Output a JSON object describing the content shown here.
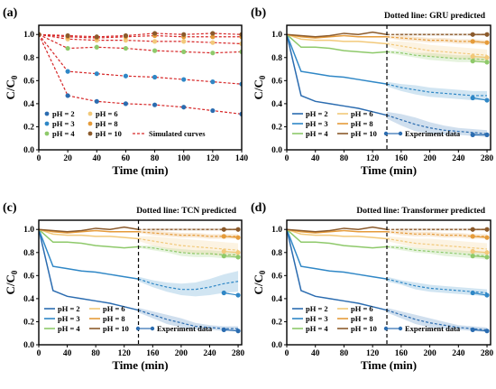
{
  "colors": {
    "pH2": "#2b6cb0",
    "pH3": "#2f87c6",
    "pH4": "#8ec96a",
    "pH6": "#f2c97a",
    "pH8": "#e59b3a",
    "pH10": "#8b5a2b",
    "simulated": "#d62728"
  },
  "chart_data": [
    {
      "type": "scatter",
      "panel_label": "(a)",
      "note": "",
      "xlabel": "Time (min)",
      "ylabel": "C/C0",
      "xlim": [
        0,
        140
      ],
      "ylim": [
        0,
        1.08
      ],
      "xticks": [
        0,
        20,
        40,
        60,
        80,
        100,
        120,
        140
      ],
      "yticks": [
        0,
        0.2,
        0.4,
        0.6,
        0.8,
        1.0
      ],
      "legend": {
        "position": "bottom-left",
        "entries": [
          {
            "key": "pH2",
            "label": "pH = 2"
          },
          {
            "key": "pH3",
            "label": "pH = 3"
          },
          {
            "key": "pH4",
            "label": "pH = 4"
          },
          {
            "key": "pH6",
            "label": "pH = 6"
          },
          {
            "key": "pH8",
            "label": "pH = 8"
          },
          {
            "key": "pH10",
            "label": "pH = 10"
          },
          {
            "key": "simulated",
            "label": "Simulated curves"
          }
        ]
      },
      "x": [
        0,
        20,
        40,
        60,
        80,
        100,
        120,
        140
      ],
      "series": [
        {
          "key": "pH2",
          "values": [
            1.0,
            0.47,
            0.42,
            0.4,
            0.39,
            0.37,
            0.34,
            0.31
          ]
        },
        {
          "key": "pH3",
          "values": [
            1.0,
            0.68,
            0.66,
            0.64,
            0.63,
            0.61,
            0.59,
            0.57
          ]
        },
        {
          "key": "pH4",
          "values": [
            1.0,
            0.88,
            0.89,
            0.88,
            0.86,
            0.85,
            0.84,
            0.85
          ]
        },
        {
          "key": "pH6",
          "values": [
            1.0,
            0.96,
            0.95,
            0.95,
            0.94,
            0.94,
            0.93,
            0.92
          ]
        },
        {
          "key": "pH8",
          "values": [
            1.0,
            0.98,
            0.97,
            0.98,
            0.99,
            0.98,
            0.98,
            0.98
          ]
        },
        {
          "key": "pH10",
          "values": [
            1.0,
            0.99,
            0.98,
            0.99,
            1.01,
            1.0,
            1.01,
            1.0
          ]
        }
      ]
    },
    {
      "type": "line",
      "panel_label": "(b)",
      "note": "Dotted line: GRU predicted",
      "xlabel": "Time (min)",
      "ylabel": "C/C0",
      "xlim": [
        0,
        285
      ],
      "ylim": [
        0,
        1.08
      ],
      "xticks": [
        0,
        40,
        80,
        120,
        160,
        200,
        240,
        280
      ],
      "yticks": [
        0,
        0.2,
        0.4,
        0.6,
        0.8,
        1.0
      ],
      "split_x": 140,
      "legend": {
        "position": "bottom-left",
        "entries": [
          {
            "key": "pH2",
            "label": "pH = 2"
          },
          {
            "key": "pH3",
            "label": "pH = 3"
          },
          {
            "key": "pH4",
            "label": "pH = 4"
          },
          {
            "key": "pH6",
            "label": "pH = 6"
          },
          {
            "key": "pH8",
            "label": "pH = 8"
          },
          {
            "key": "pH10",
            "label": "pH = 10"
          },
          {
            "key": "experiment",
            "label": "Experiment data"
          }
        ]
      },
      "x_train": [
        0,
        20,
        40,
        60,
        80,
        100,
        120,
        140
      ],
      "x_pred": [
        140,
        160,
        180,
        200,
        220,
        240,
        260,
        280
      ],
      "x_exp": [
        260,
        280
      ],
      "series": [
        {
          "key": "pH2",
          "train": [
            1.0,
            0.47,
            0.42,
            0.4,
            0.38,
            0.36,
            0.33,
            0.3
          ],
          "pred": [
            0.3,
            0.26,
            0.22,
            0.19,
            0.17,
            0.16,
            0.15,
            0.14
          ],
          "band": [
            0.03,
            0.05,
            0.06,
            0.05,
            0.04,
            0.03,
            0.03,
            0.03
          ],
          "exp": [
            0.13,
            0.13
          ]
        },
        {
          "key": "pH3",
          "train": [
            1.0,
            0.68,
            0.66,
            0.64,
            0.63,
            0.61,
            0.59,
            0.57
          ],
          "pred": [
            0.57,
            0.54,
            0.52,
            0.5,
            0.49,
            0.48,
            0.47,
            0.47
          ],
          "band": [
            0.02,
            0.03,
            0.04,
            0.04,
            0.04,
            0.04,
            0.04,
            0.04
          ],
          "exp": [
            0.45,
            0.43
          ]
        },
        {
          "key": "pH4",
          "train": [
            1.0,
            0.89,
            0.89,
            0.88,
            0.86,
            0.85,
            0.84,
            0.85
          ],
          "pred": [
            0.85,
            0.84,
            0.82,
            0.81,
            0.8,
            0.79,
            0.79,
            0.78
          ],
          "band": [
            0.01,
            0.02,
            0.02,
            0.03,
            0.03,
            0.03,
            0.03,
            0.03
          ],
          "exp": [
            0.77,
            0.76
          ]
        },
        {
          "key": "pH6",
          "train": [
            1.0,
            0.96,
            0.95,
            0.95,
            0.94,
            0.94,
            0.93,
            0.92
          ],
          "pred": [
            0.92,
            0.9,
            0.88,
            0.86,
            0.85,
            0.84,
            0.83,
            0.82
          ],
          "band": [
            0.02,
            0.04,
            0.05,
            0.05,
            0.05,
            0.05,
            0.05,
            0.05
          ],
          "exp": [
            0.81,
            0.8
          ]
        },
        {
          "key": "pH8",
          "train": [
            1.0,
            0.98,
            0.97,
            0.98,
            0.99,
            0.98,
            0.98,
            0.98
          ],
          "pred": [
            0.98,
            0.97,
            0.96,
            0.95,
            0.95,
            0.94,
            0.94,
            0.93
          ],
          "band": [
            0.01,
            0.02,
            0.02,
            0.02,
            0.02,
            0.02,
            0.02,
            0.02
          ],
          "exp": [
            0.94,
            0.93
          ]
        },
        {
          "key": "pH10",
          "train": [
            1.0,
            0.99,
            0.98,
            0.99,
            1.01,
            1.0,
            1.02,
            1.0
          ],
          "pred": [
            1.0,
            1.0,
            1.0,
            1.0,
            1.0,
            1.0,
            1.0,
            1.0
          ],
          "band": [
            0.0,
            0.01,
            0.01,
            0.01,
            0.01,
            0.01,
            0.01,
            0.01
          ],
          "exp": [
            1.0,
            1.0
          ]
        }
      ]
    },
    {
      "type": "line",
      "panel_label": "(c)",
      "note": "Dotted line: TCN predicted",
      "xlabel": "Time (min)",
      "ylabel": "C/C0",
      "xlim": [
        0,
        285
      ],
      "ylim": [
        0,
        1.08
      ],
      "xticks": [
        0,
        40,
        80,
        120,
        160,
        200,
        240,
        280
      ],
      "yticks": [
        0,
        0.2,
        0.4,
        0.6,
        0.8,
        1.0
      ],
      "split_x": 140,
      "legend": {
        "position": "bottom-left",
        "entries": [
          {
            "key": "pH2",
            "label": "pH = 2"
          },
          {
            "key": "pH3",
            "label": "pH = 3"
          },
          {
            "key": "pH4",
            "label": "pH = 4"
          },
          {
            "key": "pH6",
            "label": "pH = 6"
          },
          {
            "key": "pH8",
            "label": "pH = 8"
          },
          {
            "key": "pH10",
            "label": "pH = 10"
          },
          {
            "key": "experiment",
            "label": "Experiment data"
          }
        ]
      },
      "x_train": [
        0,
        20,
        40,
        60,
        80,
        100,
        120,
        140
      ],
      "x_pred": [
        140,
        160,
        180,
        200,
        220,
        240,
        260,
        280
      ],
      "x_exp": [
        260,
        280
      ],
      "series": [
        {
          "key": "pH2",
          "train": [
            1.0,
            0.47,
            0.42,
            0.4,
            0.38,
            0.36,
            0.33,
            0.3
          ],
          "pred": [
            0.3,
            0.26,
            0.22,
            0.19,
            0.16,
            0.15,
            0.14,
            0.14
          ],
          "band": [
            0.02,
            0.03,
            0.04,
            0.04,
            0.03,
            0.02,
            0.02,
            0.02
          ],
          "exp": [
            0.13,
            0.12
          ]
        },
        {
          "key": "pH3",
          "train": [
            1.0,
            0.68,
            0.66,
            0.64,
            0.63,
            0.61,
            0.59,
            0.57
          ],
          "pred": [
            0.57,
            0.53,
            0.5,
            0.48,
            0.48,
            0.5,
            0.53,
            0.55
          ],
          "band": [
            0.02,
            0.03,
            0.04,
            0.05,
            0.06,
            0.07,
            0.08,
            0.09
          ],
          "exp": [
            0.45,
            0.43
          ]
        },
        {
          "key": "pH4",
          "train": [
            1.0,
            0.89,
            0.89,
            0.88,
            0.86,
            0.85,
            0.84,
            0.85
          ],
          "pred": [
            0.85,
            0.84,
            0.82,
            0.8,
            0.79,
            0.79,
            0.78,
            0.78
          ],
          "band": [
            0.01,
            0.02,
            0.02,
            0.03,
            0.03,
            0.03,
            0.03,
            0.03
          ],
          "exp": [
            0.77,
            0.76
          ]
        },
        {
          "key": "pH6",
          "train": [
            1.0,
            0.96,
            0.95,
            0.95,
            0.94,
            0.94,
            0.93,
            0.92
          ],
          "pred": [
            0.92,
            0.9,
            0.88,
            0.86,
            0.85,
            0.84,
            0.83,
            0.82
          ],
          "band": [
            0.02,
            0.04,
            0.05,
            0.06,
            0.06,
            0.06,
            0.06,
            0.06
          ],
          "exp": [
            0.81,
            0.8
          ]
        },
        {
          "key": "pH8",
          "train": [
            1.0,
            0.98,
            0.97,
            0.98,
            0.99,
            0.98,
            0.98,
            0.98
          ],
          "pred": [
            0.98,
            0.97,
            0.96,
            0.95,
            0.95,
            0.94,
            0.94,
            0.94
          ],
          "band": [
            0.01,
            0.02,
            0.02,
            0.02,
            0.02,
            0.02,
            0.02,
            0.02
          ],
          "exp": [
            0.94,
            0.93
          ]
        },
        {
          "key": "pH10",
          "train": [
            1.0,
            0.99,
            0.98,
            0.99,
            1.01,
            1.0,
            1.02,
            1.0
          ],
          "pred": [
            1.0,
            1.0,
            1.0,
            1.0,
            1.0,
            1.0,
            1.0,
            1.0
          ],
          "band": [
            0.0,
            0.01,
            0.01,
            0.01,
            0.01,
            0.01,
            0.01,
            0.01
          ],
          "exp": [
            1.0,
            1.0
          ]
        }
      ]
    },
    {
      "type": "line",
      "panel_label": "(d)",
      "note": "Dotted line: Transformer predicted",
      "xlabel": "Time (min)",
      "ylabel": "C/C0",
      "xlim": [
        0,
        285
      ],
      "ylim": [
        0,
        1.08
      ],
      "xticks": [
        0,
        40,
        80,
        120,
        160,
        200,
        240,
        280
      ],
      "yticks": [
        0,
        0.2,
        0.4,
        0.6,
        0.8,
        1.0
      ],
      "split_x": 140,
      "legend": {
        "position": "bottom-left",
        "entries": [
          {
            "key": "pH2",
            "label": "pH = 2"
          },
          {
            "key": "pH3",
            "label": "pH = 3"
          },
          {
            "key": "pH4",
            "label": "pH = 4"
          },
          {
            "key": "pH6",
            "label": "pH = 6"
          },
          {
            "key": "pH8",
            "label": "pH = 8"
          },
          {
            "key": "pH10",
            "label": "pH = 10"
          },
          {
            "key": "experiment",
            "label": "Experiment data"
          }
        ]
      },
      "x_train": [
        0,
        20,
        40,
        60,
        80,
        100,
        120,
        140
      ],
      "x_pred": [
        140,
        160,
        180,
        200,
        220,
        240,
        260,
        280
      ],
      "x_exp": [
        260,
        280
      ],
      "series": [
        {
          "key": "pH2",
          "train": [
            1.0,
            0.47,
            0.42,
            0.4,
            0.38,
            0.36,
            0.33,
            0.3
          ],
          "pred": [
            0.3,
            0.26,
            0.22,
            0.19,
            0.17,
            0.15,
            0.14,
            0.13
          ],
          "band": [
            0.02,
            0.03,
            0.04,
            0.04,
            0.03,
            0.02,
            0.02,
            0.02
          ],
          "exp": [
            0.13,
            0.12
          ]
        },
        {
          "key": "pH3",
          "train": [
            1.0,
            0.68,
            0.66,
            0.64,
            0.63,
            0.61,
            0.59,
            0.57
          ],
          "pred": [
            0.57,
            0.54,
            0.51,
            0.49,
            0.48,
            0.47,
            0.46,
            0.45
          ],
          "band": [
            0.02,
            0.02,
            0.03,
            0.03,
            0.03,
            0.03,
            0.03,
            0.03
          ],
          "exp": [
            0.45,
            0.43
          ]
        },
        {
          "key": "pH4",
          "train": [
            1.0,
            0.89,
            0.89,
            0.88,
            0.86,
            0.85,
            0.84,
            0.85
          ],
          "pred": [
            0.85,
            0.84,
            0.82,
            0.81,
            0.8,
            0.79,
            0.78,
            0.77
          ],
          "band": [
            0.01,
            0.02,
            0.02,
            0.02,
            0.03,
            0.03,
            0.03,
            0.03
          ],
          "exp": [
            0.77,
            0.76
          ]
        },
        {
          "key": "pH6",
          "train": [
            1.0,
            0.96,
            0.95,
            0.95,
            0.94,
            0.94,
            0.93,
            0.92
          ],
          "pred": [
            0.92,
            0.9,
            0.88,
            0.87,
            0.86,
            0.85,
            0.84,
            0.83
          ],
          "band": [
            0.02,
            0.03,
            0.04,
            0.05,
            0.05,
            0.05,
            0.05,
            0.05
          ],
          "exp": [
            0.81,
            0.8
          ]
        },
        {
          "key": "pH8",
          "train": [
            1.0,
            0.98,
            0.97,
            0.98,
            0.99,
            0.98,
            0.98,
            0.98
          ],
          "pred": [
            0.98,
            0.97,
            0.96,
            0.96,
            0.95,
            0.95,
            0.94,
            0.94
          ],
          "band": [
            0.01,
            0.02,
            0.02,
            0.02,
            0.02,
            0.02,
            0.02,
            0.02
          ],
          "exp": [
            0.94,
            0.93
          ]
        },
        {
          "key": "pH10",
          "train": [
            1.0,
            0.99,
            0.98,
            0.99,
            1.01,
            1.0,
            1.02,
            1.0
          ],
          "pred": [
            1.0,
            1.0,
            1.0,
            1.0,
            1.0,
            1.0,
            1.0,
            1.0
          ],
          "band": [
            0.0,
            0.01,
            0.01,
            0.01,
            0.01,
            0.01,
            0.01,
            0.01
          ],
          "exp": [
            1.0,
            1.0
          ]
        }
      ]
    }
  ]
}
